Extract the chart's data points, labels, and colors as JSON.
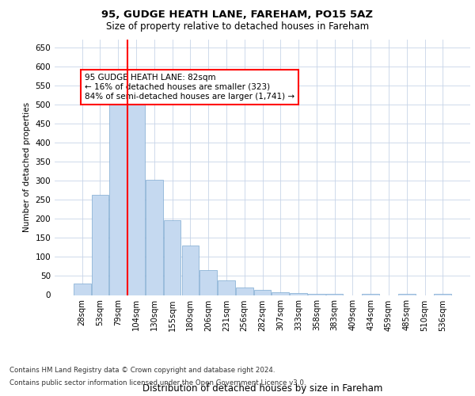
{
  "title1": "95, GUDGE HEATH LANE, FAREHAM, PO15 5AZ",
  "title2": "Size of property relative to detached houses in Fareham",
  "xlabel": "Distribution of detached houses by size in Fareham",
  "ylabel": "Number of detached properties",
  "categories": [
    "28sqm",
    "53sqm",
    "79sqm",
    "104sqm",
    "130sqm",
    "155sqm",
    "180sqm",
    "206sqm",
    "231sqm",
    "256sqm",
    "282sqm",
    "307sqm",
    "333sqm",
    "358sqm",
    "383sqm",
    "409sqm",
    "434sqm",
    "459sqm",
    "485sqm",
    "510sqm",
    "536sqm"
  ],
  "values": [
    30,
    263,
    512,
    510,
    302,
    196,
    130,
    65,
    38,
    20,
    14,
    8,
    5,
    3,
    3,
    0,
    4,
    0,
    4,
    0,
    4
  ],
  "bar_color": "#c5d9f0",
  "bar_edge_color": "#7da9d1",
  "vline_color": "red",
  "annotation_text": "95 GUDGE HEATH LANE: 82sqm\n← 16% of detached houses are smaller (323)\n84% of semi-detached houses are larger (1,741) →",
  "annotation_box_color": "white",
  "annotation_box_edge": "red",
  "ylim": [
    0,
    670
  ],
  "yticks": [
    0,
    50,
    100,
    150,
    200,
    250,
    300,
    350,
    400,
    450,
    500,
    550,
    600,
    650
  ],
  "footer1": "Contains HM Land Registry data © Crown copyright and database right 2024.",
  "footer2": "Contains public sector information licensed under the Open Government Licence v3.0.",
  "bg_color": "#ffffff",
  "grid_color": "#c8d4e8"
}
